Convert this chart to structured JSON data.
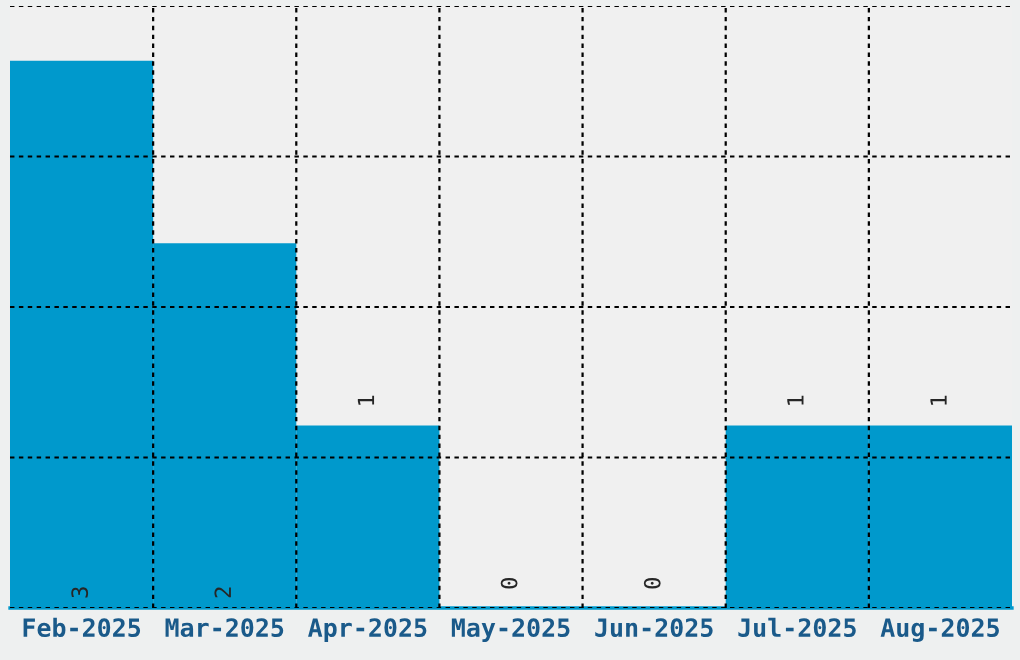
{
  "chart_data": {
    "type": "bar",
    "categories": [
      "Feb-2025",
      "Mar-2025",
      "Apr-2025",
      "May-2025",
      "Jun-2025",
      "Jul-2025",
      "Aug-2025"
    ],
    "values": [
      3,
      2,
      1,
      0,
      0,
      1,
      1
    ],
    "color": "#0099cc",
    "ylim": [
      0,
      3.3
    ],
    "yticks": [
      {
        "value": 0,
        "label": null
      },
      {
        "value": 0.825,
        "label": null
      },
      {
        "value": 1.65,
        "label": null
      },
      {
        "value": 2.475,
        "label": null
      },
      {
        "value": 3.3,
        "label": null
      }
    ],
    "tick_labels": "x",
    "grid": true,
    "data_labels": true
  }
}
